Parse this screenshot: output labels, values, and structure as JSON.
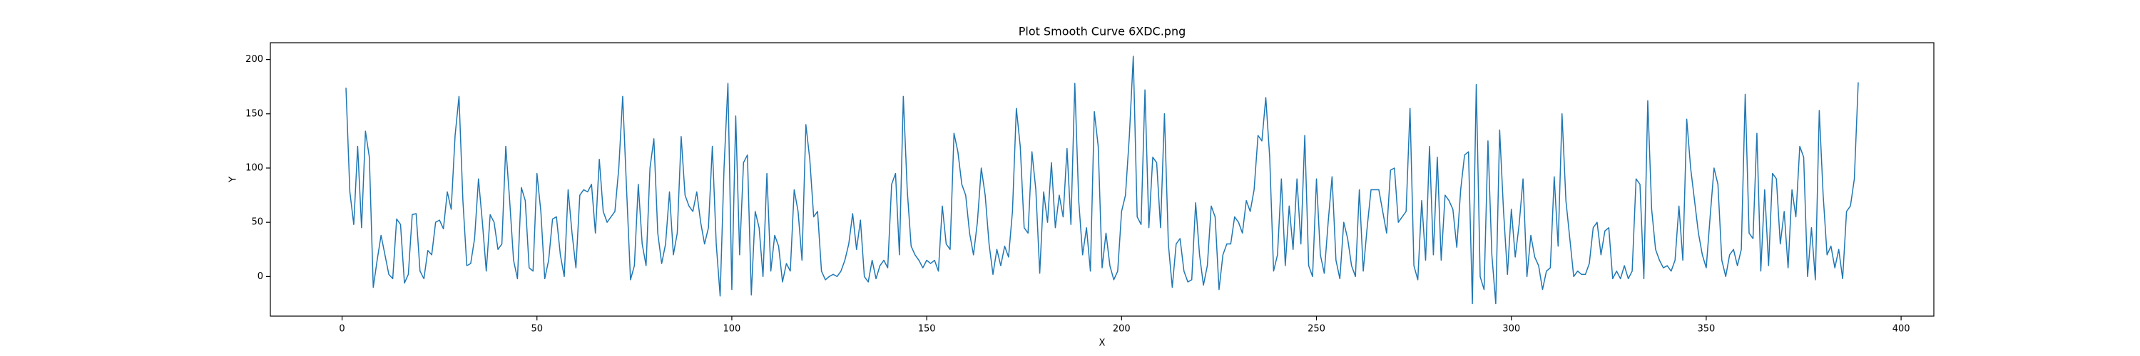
{
  "chart_data": {
    "type": "line",
    "title": "Plot Smooth Curve 6XDC.png",
    "x_label": "X",
    "y_label": "Y",
    "x": [
      1,
      2,
      3,
      4,
      5,
      6,
      7,
      8,
      9,
      10,
      11,
      12,
      13,
      14,
      15,
      16,
      17,
      18,
      19,
      20,
      21,
      22,
      23,
      24,
      25,
      26,
      27,
      28,
      29,
      30,
      31,
      32,
      33,
      34,
      35,
      36,
      37,
      38,
      39,
      40,
      41,
      42,
      43,
      44,
      45,
      46,
      47,
      48,
      49,
      50,
      51,
      52,
      53,
      54,
      55,
      56,
      57,
      58,
      59,
      60,
      61,
      62,
      63,
      64,
      65,
      66,
      67,
      68,
      69,
      70,
      71,
      72,
      73,
      74,
      75,
      76,
      77,
      78,
      79,
      80,
      81,
      82,
      83,
      84,
      85,
      86,
      87,
      88,
      89,
      90,
      91,
      92,
      93,
      94,
      95,
      96,
      97,
      98,
      99,
      100,
      101,
      102,
      103,
      104,
      105,
      106,
      107,
      108,
      109,
      110,
      111,
      112,
      113,
      114,
      115,
      116,
      117,
      118,
      119,
      120,
      121,
      122,
      123,
      124,
      125,
      126,
      127,
      128,
      129,
      130,
      131,
      132,
      133,
      134,
      135,
      136,
      137,
      138,
      139,
      140,
      141,
      142,
      143,
      144,
      145,
      146,
      147,
      148,
      149,
      150,
      151,
      152,
      153,
      154,
      155,
      156,
      157,
      158,
      159,
      160,
      161,
      162,
      163,
      164,
      165,
      166,
      167,
      168,
      169,
      170,
      171,
      172,
      173,
      174,
      175,
      176,
      177,
      178,
      179,
      180,
      181,
      182,
      183,
      184,
      185,
      186,
      187,
      188,
      189,
      190,
      191,
      192,
      193,
      194,
      195,
      196,
      197,
      198,
      199,
      200,
      201,
      202,
      203,
      204,
      205,
      206,
      207,
      208,
      209,
      210,
      211,
      212,
      213,
      214,
      215,
      216,
      217,
      218,
      219,
      220,
      221,
      222,
      223,
      224,
      225,
      226,
      227,
      228,
      229,
      230,
      231,
      232,
      233,
      234,
      235,
      236,
      237,
      238,
      239,
      240,
      241,
      242,
      243,
      244,
      245,
      246,
      247,
      248,
      249,
      250,
      251,
      252,
      253,
      254,
      255,
      256,
      257,
      258,
      259,
      260,
      261,
      262,
      263,
      264,
      265,
      266,
      267,
      268,
      269,
      270,
      271,
      272,
      273,
      274,
      275,
      276,
      277,
      278,
      279,
      280,
      281,
      282,
      283,
      284,
      285,
      286,
      287,
      288,
      289,
      290,
      291,
      292,
      293,
      294,
      295,
      296,
      297,
      298,
      299,
      300,
      301,
      302,
      303,
      304,
      305,
      306,
      307,
      308,
      309,
      310,
      311,
      312,
      313,
      314,
      315,
      316,
      317,
      318,
      319,
      320,
      321,
      322,
      323,
      324,
      325,
      326,
      327,
      328,
      329,
      330,
      331,
      332,
      333,
      334,
      335,
      336,
      337,
      338,
      339,
      340,
      341,
      342,
      343,
      344,
      345,
      346,
      347,
      348,
      349,
      350,
      351,
      352,
      353,
      354,
      355,
      356,
      357,
      358,
      359,
      360,
      361,
      362,
      363,
      364,
      365,
      366,
      367,
      368,
      369,
      370,
      371,
      372,
      373,
      374,
      375,
      376,
      377,
      378,
      379,
      380,
      381,
      382,
      383,
      384,
      385,
      386,
      387,
      388,
      389
    ],
    "values": [
      174,
      78,
      48,
      120,
      45,
      134,
      110,
      -10,
      15,
      38,
      20,
      2,
      -2,
      53,
      48,
      -6,
      2,
      57,
      58,
      5,
      -2,
      24,
      20,
      50,
      52,
      44,
      78,
      62,
      130,
      166,
      70,
      10,
      12,
      35,
      90,
      50,
      5,
      57,
      50,
      25,
      30,
      120,
      70,
      15,
      -2,
      82,
      70,
      8,
      5,
      95,
      60,
      -2,
      15,
      53,
      55,
      20,
      0,
      80,
      40,
      8,
      75,
      80,
      78,
      85,
      40,
      108,
      60,
      50,
      55,
      60,
      100,
      166,
      80,
      -3,
      10,
      85,
      30,
      10,
      100,
      127,
      40,
      12,
      30,
      78,
      20,
      40,
      129,
      75,
      65,
      60,
      78,
      50,
      30,
      45,
      120,
      30,
      -18,
      100,
      178,
      -12,
      148,
      20,
      105,
      112,
      -17,
      60,
      45,
      0,
      95,
      5,
      38,
      28,
      -5,
      12,
      5,
      80,
      60,
      15,
      140,
      108,
      55,
      60,
      5,
      -3,
      0,
      2,
      0,
      5,
      15,
      30,
      58,
      25,
      52,
      0,
      -5,
      15,
      -2,
      10,
      15,
      8,
      85,
      95,
      20,
      166,
      80,
      28,
      20,
      15,
      8,
      15,
      12,
      15,
      5,
      65,
      30,
      25,
      132,
      115,
      85,
      75,
      40,
      20,
      50,
      100,
      75,
      30,
      2,
      25,
      10,
      28,
      18,
      60,
      155,
      120,
      45,
      40,
      115,
      80,
      3,
      78,
      50,
      105,
      45,
      75,
      55,
      118,
      48,
      178,
      70,
      20,
      45,
      5,
      152,
      120,
      8,
      40,
      10,
      -3,
      5,
      60,
      75,
      130,
      203,
      55,
      48,
      172,
      45,
      110,
      105,
      45,
      150,
      30,
      -10,
      30,
      35,
      5,
      -5,
      -3,
      68,
      20,
      -8,
      10,
      65,
      55,
      -12,
      20,
      30,
      30,
      55,
      50,
      40,
      70,
      60,
      80,
      130,
      125,
      165,
      110,
      5,
      20,
      90,
      10,
      65,
      25,
      90,
      30,
      130,
      10,
      0,
      90,
      20,
      3,
      50,
      92,
      15,
      -2,
      50,
      35,
      10,
      0,
      80,
      5,
      45,
      80,
      80,
      80,
      60,
      40,
      98,
      100,
      50,
      55,
      60,
      155,
      10,
      -3,
      70,
      15,
      120,
      20,
      110,
      15,
      75,
      70,
      62,
      27,
      80,
      112,
      115,
      -25,
      177,
      0,
      -12,
      125,
      20,
      -25,
      135,
      60,
      2,
      62,
      18,
      48,
      90,
      0,
      38,
      18,
      10,
      -12,
      5,
      8,
      92,
      28,
      150,
      70,
      35,
      0,
      5,
      2,
      2,
      12,
      45,
      50,
      20,
      42,
      45,
      -2,
      5,
      -2,
      10,
      -2,
      5,
      90,
      85,
      -2,
      162,
      62,
      25,
      15,
      8,
      10,
      5,
      15,
      65,
      15,
      145,
      100,
      70,
      40,
      20,
      8,
      55,
      100,
      85,
      15,
      0,
      20,
      25,
      10,
      25,
      168,
      40,
      35,
      132,
      5,
      80,
      10,
      95,
      90,
      30,
      60,
      8,
      80,
      55,
      120,
      110,
      0,
      45,
      -3,
      153,
      75,
      20,
      28,
      8,
      25,
      -2,
      60,
      65,
      90,
      179
    ],
    "color": "#1f77b4",
    "xlim": [
      -18.4,
      408.4
    ],
    "xticks": [
      0,
      50,
      100,
      150,
      200,
      250,
      300,
      350,
      400
    ],
    "ylim": [
      -36.5,
      215.5
    ],
    "yticks": [
      0,
      50,
      100,
      150,
      200
    ]
  }
}
